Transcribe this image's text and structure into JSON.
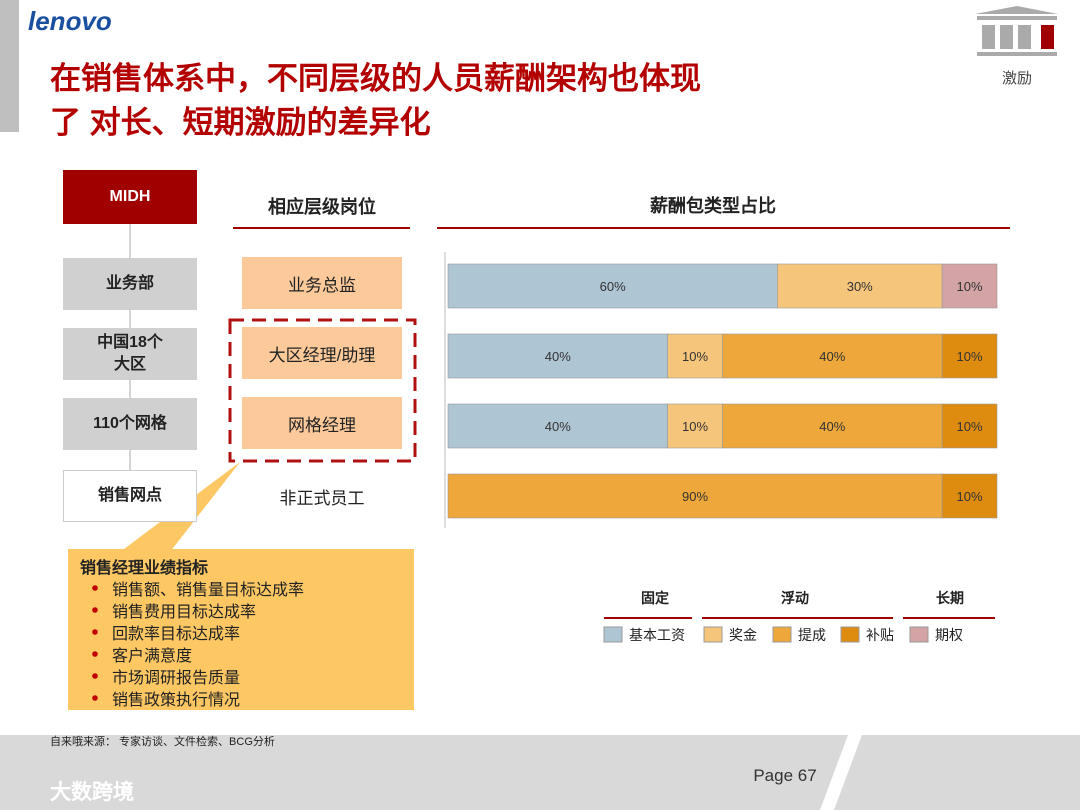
{
  "header": {
    "logo": "lenovo",
    "title_lines": [
      "在销售体系中，不同层级的人员薪酬架构也体现",
      "了 对长、短期激励的差异化"
    ],
    "icon_label": "激励"
  },
  "org": {
    "nodes": [
      "MIDH",
      "业务部",
      "中国18个大区",
      "110个网格",
      "销售网点"
    ],
    "position_header": "相应层级岗位"
  },
  "callout": {
    "title": "销售经理业绩指标",
    "items": [
      "销售额、销售量目标达成率",
      "销售费用目标达成率",
      "回款率目标达成率",
      "客户满意度",
      "市场调研报告质量",
      "销售政策执行情况"
    ]
  },
  "chart_data": {
    "type": "stacked_bar_h",
    "title": "薪酬包类型占比",
    "categories": [
      "业务总监",
      "大区经理/助理",
      "网格经理",
      "非正式员工"
    ],
    "xlim": [
      0,
      100
    ],
    "series": [
      {
        "name": "基本工资",
        "color": "#aec5d4",
        "values": [
          60,
          40,
          40,
          null
        ],
        "value_labels": [
          "60%",
          "40%",
          "40%",
          null
        ]
      },
      {
        "name": "奖金",
        "color": "#f6c57c",
        "values": [
          30,
          10,
          10,
          null
        ],
        "value_labels": [
          "30%",
          "10%",
          "10%",
          null
        ]
      },
      {
        "name": "提成",
        "color": "#eda73a",
        "values": [
          null,
          40,
          40,
          90
        ],
        "value_labels": [
          null,
          "40%",
          "40%",
          "90%"
        ]
      },
      {
        "name": "补贴",
        "color": "#de8c10",
        "values": [
          null,
          10,
          10,
          10
        ],
        "value_labels": [
          null,
          "10%",
          "10%",
          "10%"
        ]
      },
      {
        "name": "期权",
        "color": "#d4a3a5",
        "values": [
          10,
          null,
          null,
          null
        ],
        "value_labels": [
          "10%",
          null,
          null,
          null
        ]
      }
    ],
    "legend_groups": [
      "固定",
      "浮动",
      "长期"
    ]
  },
  "footer": {
    "source": "自来哦来源： 专家访谈、文件检索、BCG分析",
    "page": "Page 67",
    "watermark": "大数跨境"
  }
}
